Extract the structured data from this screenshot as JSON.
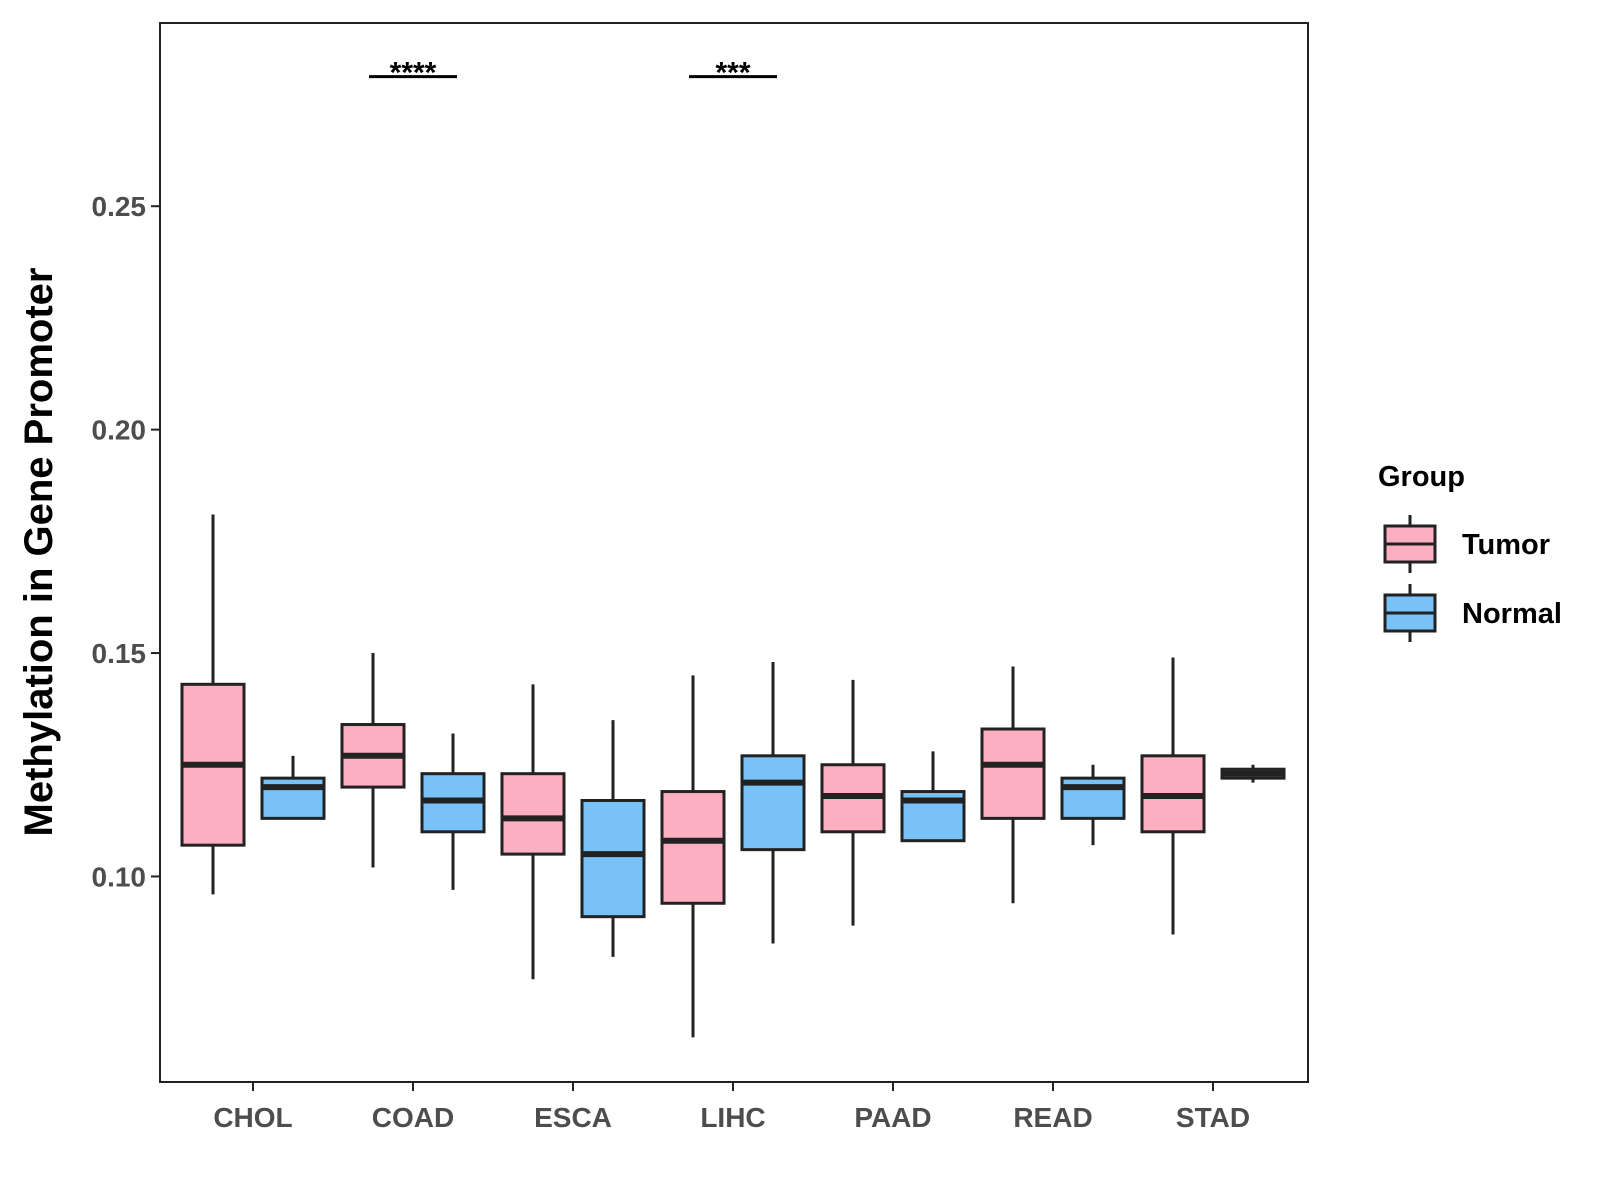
{
  "chart_data": {
    "type": "boxplot",
    "title": "",
    "xlabel": "",
    "ylabel": "Methylation in Gene Promoter",
    "ylim": [
      0.054,
      0.291
    ],
    "yticks": [
      0.1,
      0.15,
      0.2,
      0.25
    ],
    "ytick_labels": [
      "0.10",
      "0.15",
      "0.20",
      "0.25"
    ],
    "categories": [
      "CHOL",
      "COAD",
      "ESCA",
      "LIHC",
      "PAAD",
      "READ",
      "STAD"
    ],
    "legend": {
      "title": "Group",
      "position": "right",
      "entries": [
        {
          "name": "Tumor",
          "color": "#fbafc1"
        },
        {
          "name": "Normal",
          "color": "#78c2f8"
        }
      ]
    },
    "series": [
      {
        "name": "Tumor",
        "color": "#fbafc1",
        "boxes": [
          {
            "category": "CHOL",
            "whisker_low": 0.096,
            "q1": 0.107,
            "median": 0.125,
            "q3": 0.143,
            "whisker_high": 0.181
          },
          {
            "category": "COAD",
            "whisker_low": 0.102,
            "q1": 0.12,
            "median": 0.127,
            "q3": 0.134,
            "whisker_high": 0.15
          },
          {
            "category": "ESCA",
            "whisker_low": 0.077,
            "q1": 0.105,
            "median": 0.113,
            "q3": 0.123,
            "whisker_high": 0.143
          },
          {
            "category": "LIHC",
            "whisker_low": 0.064,
            "q1": 0.094,
            "median": 0.108,
            "q3": 0.119,
            "whisker_high": 0.145
          },
          {
            "category": "PAAD",
            "whisker_low": 0.089,
            "q1": 0.11,
            "median": 0.118,
            "q3": 0.125,
            "whisker_high": 0.144
          },
          {
            "category": "READ",
            "whisker_low": 0.094,
            "q1": 0.113,
            "median": 0.125,
            "q3": 0.133,
            "whisker_high": 0.147
          },
          {
            "category": "STAD",
            "whisker_low": 0.087,
            "q1": 0.11,
            "median": 0.118,
            "q3": 0.127,
            "whisker_high": 0.149
          }
        ]
      },
      {
        "name": "Normal",
        "color": "#78c2f8",
        "boxes": [
          {
            "category": "CHOL",
            "whisker_low": 0.113,
            "q1": 0.113,
            "median": 0.12,
            "q3": 0.122,
            "whisker_high": 0.127
          },
          {
            "category": "COAD",
            "whisker_low": 0.097,
            "q1": 0.11,
            "median": 0.117,
            "q3": 0.123,
            "whisker_high": 0.132
          },
          {
            "category": "ESCA",
            "whisker_low": 0.082,
            "q1": 0.091,
            "median": 0.105,
            "q3": 0.117,
            "whisker_high": 0.135
          },
          {
            "category": "LIHC",
            "whisker_low": 0.085,
            "q1": 0.106,
            "median": 0.121,
            "q3": 0.127,
            "whisker_high": 0.148
          },
          {
            "category": "PAAD",
            "whisker_low": 0.108,
            "q1": 0.108,
            "median": 0.117,
            "q3": 0.119,
            "whisker_high": 0.128
          },
          {
            "category": "READ",
            "whisker_low": 0.107,
            "q1": 0.113,
            "median": 0.12,
            "q3": 0.122,
            "whisker_high": 0.125
          },
          {
            "category": "STAD",
            "whisker_low": 0.121,
            "q1": 0.122,
            "median": 0.123,
            "q3": 0.124,
            "whisker_high": 0.125
          }
        ]
      }
    ],
    "annotations": [
      {
        "category": "COAD",
        "text": "****",
        "y": 0.279
      },
      {
        "category": "LIHC",
        "text": "***",
        "y": 0.279
      }
    ]
  }
}
